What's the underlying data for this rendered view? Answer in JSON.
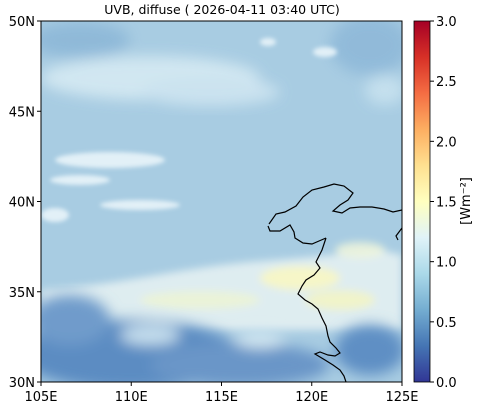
{
  "title": "UVB, diffuse ( 2026-04-11 03:40 UTC)",
  "map": {
    "lon_range": [
      105,
      125
    ],
    "lat_range": [
      30,
      50
    ],
    "x_ticks": [
      {
        "value": 105,
        "label": "105E"
      },
      {
        "value": 110,
        "label": "110E"
      },
      {
        "value": 115,
        "label": "115E"
      },
      {
        "value": 120,
        "label": "120E"
      },
      {
        "value": 125,
        "label": "125E"
      }
    ],
    "y_ticks": [
      {
        "value": 30,
        "label": "30N"
      },
      {
        "value": 35,
        "label": "35N"
      },
      {
        "value": 40,
        "label": "40N"
      },
      {
        "value": 45,
        "label": "45N"
      },
      {
        "value": 50,
        "label": "50N"
      }
    ],
    "field_colors": {
      "background": "#a8cce2",
      "clear_sky": "#b3d6e9",
      "cloud_light": "#d6eaf3",
      "cloud_dark": "#4d7fba",
      "high_band": "#f7f7c6"
    }
  },
  "colorbar": {
    "label": "[Wm⁻²]",
    "min": 0.0,
    "max": 3.0,
    "colormap": "RdYlBu_r",
    "ticks": [
      "0.0",
      "0.5",
      "1.0",
      "1.5",
      "2.0",
      "2.5",
      "3.0"
    ],
    "tick_values": [
      0.0,
      0.5,
      1.0,
      1.5,
      2.0,
      2.5,
      3.0
    ]
  }
}
